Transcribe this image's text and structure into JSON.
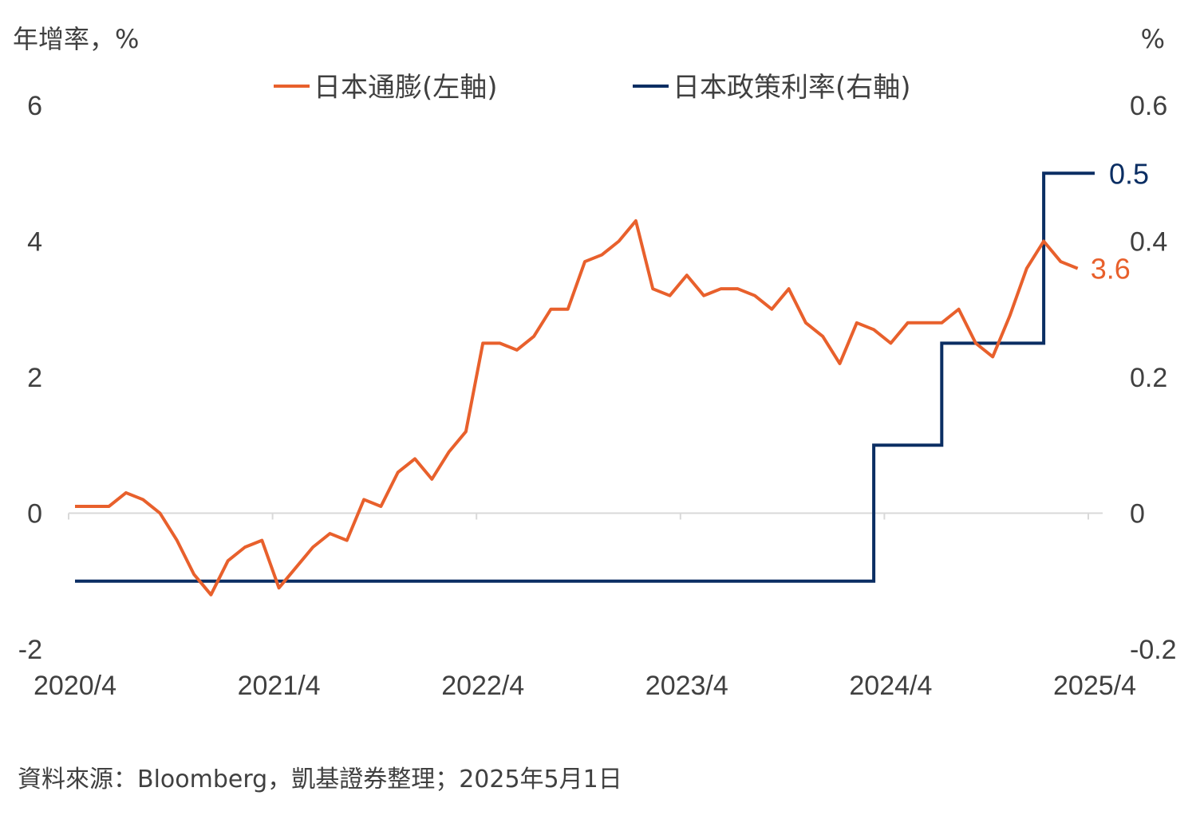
{
  "chart_data": {
    "type": "line",
    "left_axis_unit": "年增率，%",
    "right_axis_unit": "%",
    "left_ylim": [
      -2,
      6
    ],
    "right_ylim": [
      -0.2,
      0.6
    ],
    "left_ticks": [
      "6",
      "4",
      "2",
      "0",
      "-2"
    ],
    "right_ticks": [
      "0.6",
      "0.4",
      "0.2",
      "0",
      "-0.2"
    ],
    "x_ticks": [
      "2020/4",
      "2021/4",
      "2022/4",
      "2023/4",
      "2024/4",
      "2025/4"
    ],
    "series": [
      {
        "name": "日本通膨(左軸)",
        "axis": "left",
        "color": "#E8602C",
        "end_label": "3.6",
        "x": [
          "2020/4",
          "2020/5",
          "2020/6",
          "2020/7",
          "2020/8",
          "2020/9",
          "2020/10",
          "2020/11",
          "2020/12",
          "2021/1",
          "2021/2",
          "2021/3",
          "2021/4",
          "2021/5",
          "2021/6",
          "2021/7",
          "2021/8",
          "2021/9",
          "2021/10",
          "2021/11",
          "2021/12",
          "2022/1",
          "2022/2",
          "2022/3",
          "2022/4",
          "2022/5",
          "2022/6",
          "2022/7",
          "2022/8",
          "2022/9",
          "2022/10",
          "2022/11",
          "2022/12",
          "2023/1",
          "2023/2",
          "2023/3",
          "2023/4",
          "2023/5",
          "2023/6",
          "2023/7",
          "2023/8",
          "2023/9",
          "2023/10",
          "2023/11",
          "2023/12",
          "2024/1",
          "2024/2",
          "2024/3",
          "2024/4",
          "2024/5",
          "2024/6",
          "2024/7",
          "2024/8",
          "2024/9",
          "2024/10",
          "2024/11",
          "2024/12",
          "2025/1",
          "2025/2",
          "2025/3"
        ],
        "values": [
          0.1,
          0.1,
          0.1,
          0.3,
          0.2,
          0.0,
          -0.4,
          -0.9,
          -1.2,
          -0.7,
          -0.5,
          -0.4,
          -1.1,
          -0.8,
          -0.5,
          -0.3,
          -0.4,
          0.2,
          0.1,
          0.6,
          0.8,
          0.5,
          0.9,
          1.2,
          2.5,
          2.5,
          2.4,
          2.6,
          3.0,
          3.0,
          3.7,
          3.8,
          4.0,
          4.3,
          3.3,
          3.2,
          3.5,
          3.2,
          3.3,
          3.3,
          3.2,
          3.0,
          3.3,
          2.8,
          2.6,
          2.2,
          2.8,
          2.7,
          2.5,
          2.8,
          2.8,
          2.8,
          3.0,
          2.5,
          2.3,
          2.9,
          3.6,
          4.0,
          3.7,
          3.6
        ]
      },
      {
        "name": "日本政策利率(右軸)",
        "axis": "right",
        "color": "#0B2E63",
        "end_label": "0.5",
        "steps": [
          {
            "from": "2020/4",
            "to": "2024/3",
            "value": -0.1
          },
          {
            "from": "2024/3",
            "to": "2024/7",
            "value": 0.1
          },
          {
            "from": "2024/7",
            "to": "2025/1",
            "value": 0.25
          },
          {
            "from": "2025/1",
            "to": "2025/4",
            "value": 0.5
          }
        ]
      }
    ],
    "legend_placement": "top-center",
    "grid": false
  },
  "source": "資料來源：Bloomberg，凱基證券整理；2025年5月1日"
}
